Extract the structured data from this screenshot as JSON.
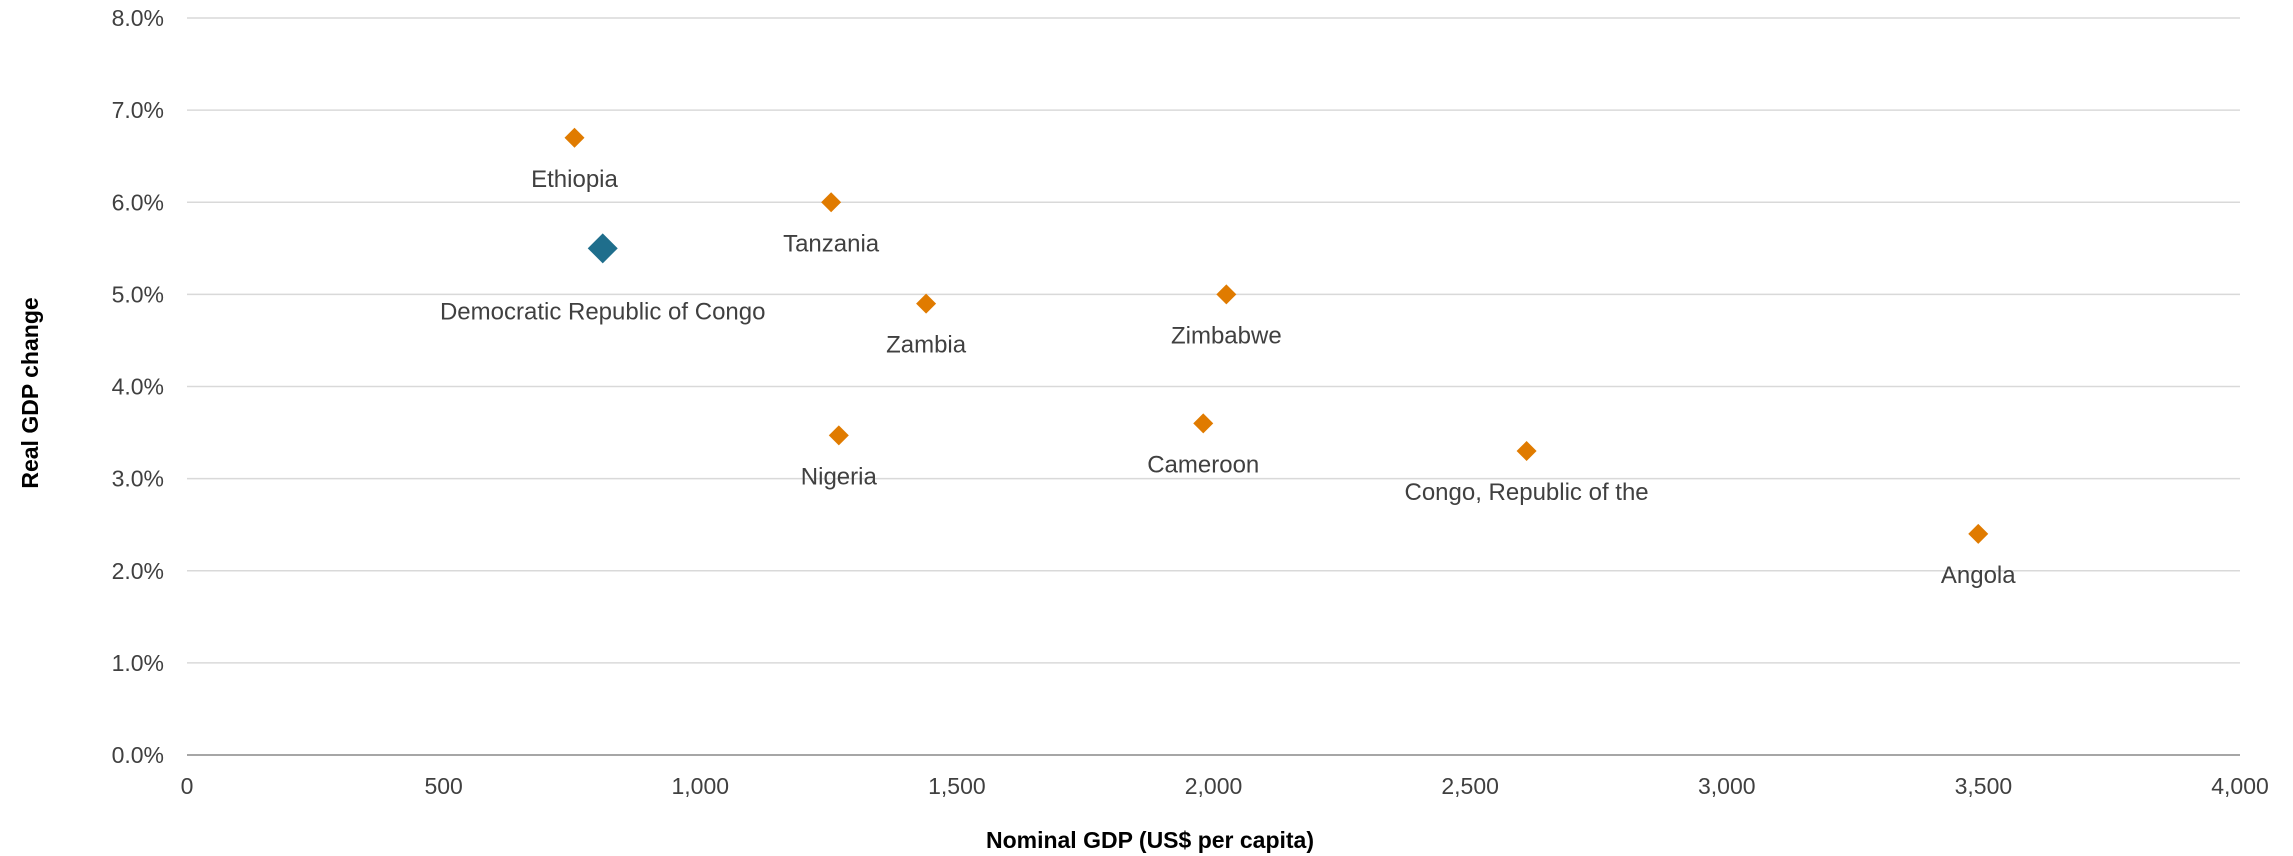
{
  "chart_data": {
    "type": "scatter",
    "xlabel": "Nominal GDP (US$ per capita)",
    "ylabel": "Real GDP change",
    "xlim": [
      0,
      4000
    ],
    "ylim": [
      0,
      8
    ],
    "x_ticks": [
      0,
      500,
      1000,
      1500,
      2000,
      2500,
      3000,
      3500,
      4000
    ],
    "x_tick_labels": [
      "0",
      "500",
      "1,000",
      "1,500",
      "2,000",
      "2,500",
      "3,000",
      "3,500",
      "4,000"
    ],
    "y_ticks": [
      0,
      1,
      2,
      3,
      4,
      5,
      6,
      7,
      8
    ],
    "y_tick_labels": [
      "0.0%",
      "1.0%",
      "2.0%",
      "3.0%",
      "4.0%",
      "5.0%",
      "6.0%",
      "7.0%",
      "8.0%"
    ],
    "grid": "horizontal",
    "highlight_color": "#1f6e8c",
    "point_color": "#e07b00",
    "points": [
      {
        "label": "Ethiopia",
        "x": 755,
        "y": 6.7,
        "highlight": false
      },
      {
        "label": "Democratic Republic of Congo",
        "x": 810,
        "y": 5.5,
        "highlight": true
      },
      {
        "label": "Tanzania",
        "x": 1255,
        "y": 6.0,
        "highlight": false
      },
      {
        "label": "Zambia",
        "x": 1440,
        "y": 4.9,
        "highlight": false
      },
      {
        "label": "Nigeria",
        "x": 1270,
        "y": 3.47,
        "highlight": false
      },
      {
        "label": "Zimbabwe",
        "x": 2025,
        "y": 5.0,
        "highlight": false
      },
      {
        "label": "Cameroon",
        "x": 1980,
        "y": 3.6,
        "highlight": false
      },
      {
        "label": "Congo, Republic of the",
        "x": 2610,
        "y": 3.3,
        "highlight": false
      },
      {
        "label": "Angola",
        "x": 3490,
        "y": 2.4,
        "highlight": false
      }
    ]
  }
}
